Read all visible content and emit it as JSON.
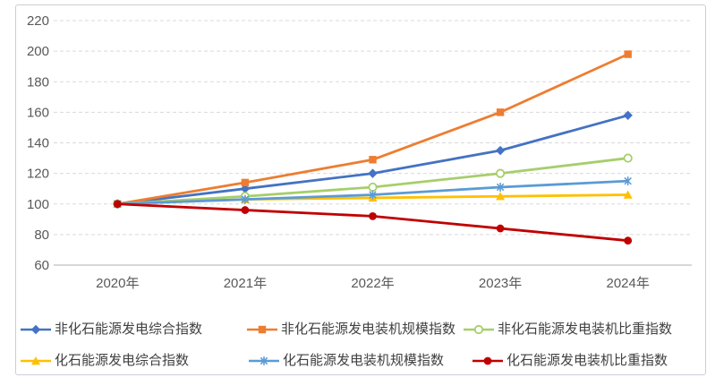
{
  "chart_data": {
    "type": "line",
    "title": "",
    "xlabel": "",
    "ylabel": "",
    "categories": [
      "2020年",
      "2021年",
      "2022年",
      "2023年",
      "2024年"
    ],
    "series": [
      {
        "name": "非化石能源发电综合指数",
        "color": "#4472C4",
        "marker": "diamond",
        "values": [
          100,
          110,
          120,
          135,
          158
        ]
      },
      {
        "name": "非化石能源发电装机规模指数",
        "color": "#ED7D31",
        "marker": "square",
        "values": [
          100,
          114,
          129,
          160,
          198
        ]
      },
      {
        "name": "非化石能源发电装机比重指数",
        "color": "#A6CE6B",
        "marker": "circle-open",
        "values": [
          100,
          105,
          111,
          120,
          130
        ]
      },
      {
        "name": "化石能源发电综合指数",
        "color": "#FFC000",
        "marker": "triangle",
        "values": [
          100,
          103,
          104,
          105,
          106
        ]
      },
      {
        "name": "化石能源发电装机规模指数",
        "color": "#5B9BD5",
        "marker": "asterisk",
        "values": [
          100,
          103,
          106,
          111,
          115
        ]
      },
      {
        "name": "化石能源发电装机比重指数",
        "color": "#C00000",
        "marker": "circle",
        "values": [
          100,
          96,
          92,
          84,
          76
        ]
      }
    ],
    "ylim": [
      60,
      220
    ],
    "ytick_step": 20,
    "yticks": [
      60,
      80,
      100,
      120,
      140,
      160,
      180,
      200,
      220
    ],
    "grid": true,
    "legend_position": "bottom"
  },
  "style": {
    "background": "#FFFFFF",
    "frame_border_color": "#CDCDD5",
    "grid_color": "#D9D9D9",
    "axis_line_color": "#BFBFBF",
    "tick_label_color": "#595959",
    "legend_text_color": "#404040"
  }
}
